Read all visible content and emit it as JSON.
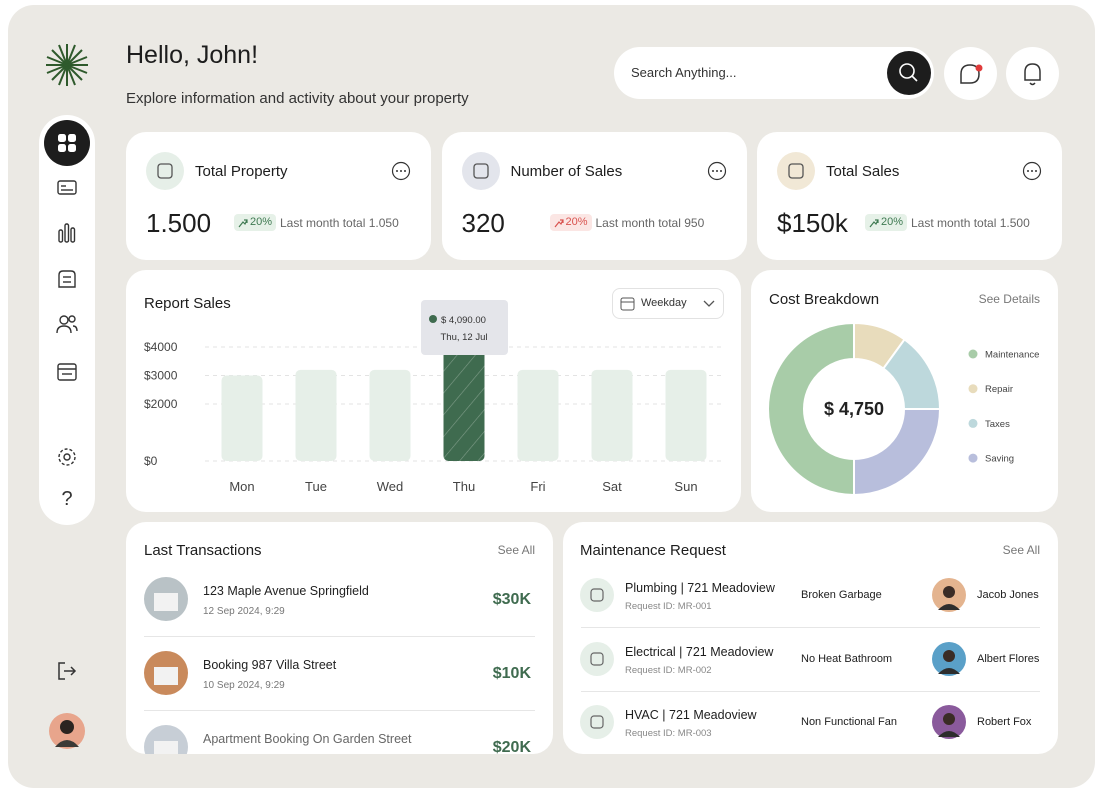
{
  "header": {
    "greeting": "Hello, John!",
    "subtitle": "Explore information and activity about your property",
    "search_placeholder": "Search Anything..."
  },
  "stats": [
    {
      "title": "Total Property",
      "value": "1.500",
      "change": "20%",
      "note": "Last month total 1.050",
      "color": "#3f7a52",
      "badge_color": "#e6f1e8",
      "icon_color": "#e6efe8"
    },
    {
      "title": "Number of Sales",
      "value": "320",
      "change": "20%",
      "note": "Last month total 950",
      "color": "#d9534f",
      "badge_color": "#fbe6e4",
      "icon_color": "#e3e5ec"
    },
    {
      "title": "Total Sales",
      "value": "$150k",
      "change": "20%",
      "note": "Last month total 1.500",
      "color": "#3f7a52",
      "badge_color": "#e6f1e8",
      "icon_color": "#f1e8d6"
    }
  ],
  "chart_data": [
    {
      "type": "bar",
      "title": "Report Sales",
      "filter": "Weekday",
      "categories": [
        "Mon",
        "Tue",
        "Wed",
        "Thu",
        "Fri",
        "Sat",
        "Sun"
      ],
      "values": [
        3000,
        3200,
        3200,
        4090,
        3200,
        3200,
        3200
      ],
      "color": "#e6efe8",
      "highlight_color": "#3f6b4f",
      "highlight": 3,
      "ylim": [
        0,
        4300
      ],
      "yticks": [
        {
          "value": 0,
          "label": "$0"
        },
        {
          "value": 2000,
          "label": "$2000"
        },
        {
          "value": 3000,
          "label": "$3000"
        },
        {
          "value": 4000,
          "label": "$4000"
        }
      ],
      "grid": true,
      "tooltip": {
        "label": "$ 4,090.00",
        "date": "Thu, 12 Jul"
      }
    },
    {
      "type": "pie",
      "title": "Cost Breakdown",
      "link": "See Details",
      "center_label": "$ 4,750",
      "categories": [
        "Maintenance",
        "Repair",
        "Taxes",
        "Saving"
      ],
      "values": [
        50,
        10,
        15,
        25
      ],
      "colors": [
        "#a8cca8",
        "#e8dcbc",
        "#bdd8dc",
        "#b8bedc"
      ]
    }
  ],
  "transactions": {
    "title": "Last Transactions",
    "link": "See All",
    "rows": [
      {
        "title": "123 Maple Avenue Springfield",
        "date": "12 Sep 2024, 9:29",
        "amount": "$30K"
      },
      {
        "title": "Booking 987 Villa Street",
        "date": "10 Sep 2024, 9:29",
        "amount": "$10K"
      },
      {
        "title": "Apartment Booking On Garden Street",
        "amount": "$20K"
      }
    ]
  },
  "maintenance": {
    "title": "Maintenance Request",
    "link": "See All",
    "rows": [
      {
        "title": "Plumbing | 721 Meadoview",
        "request_id": "Request ID: MR-001",
        "issue": "Broken Garbage",
        "assignee": "Jacob Jones"
      },
      {
        "title": "Electrical | 721 Meadoview",
        "request_id": "Request ID: MR-002",
        "issue": "No Heat Bathroom",
        "assignee": "Albert Flores"
      },
      {
        "title": "HVAC | 721 Meadoview",
        "request_id": "Request ID: MR-003",
        "issue": "Non Functional Fan",
        "assignee": "Robert Fox"
      }
    ]
  }
}
